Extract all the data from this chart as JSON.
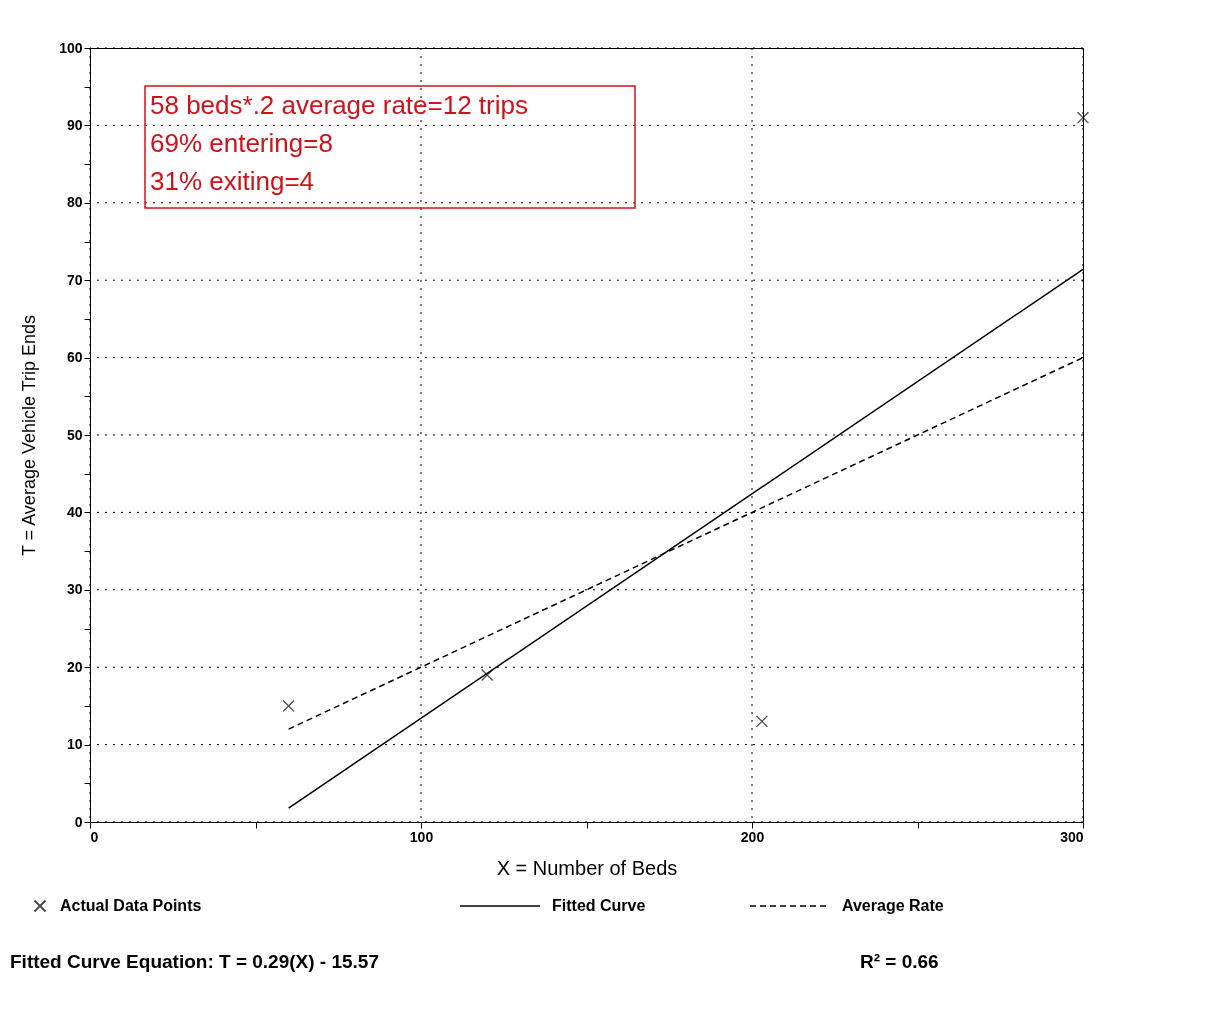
{
  "chart_data": {
    "type": "scatter",
    "xlabel": "X = Number of Beds",
    "ylabel": "T = Average Vehicle Trip Ends",
    "xlim": [
      0,
      300
    ],
    "ylim": [
      0,
      100
    ],
    "xticks": [
      0,
      {
        "value": 50,
        "label": null
      },
      100,
      {
        "value": 150,
        "label": null
      },
      200,
      {
        "value": 250,
        "label": null
      },
      300
    ],
    "yticks": [
      0,
      {
        "value": 5,
        "label": null
      },
      10,
      {
        "value": 15,
        "label": null
      },
      20,
      {
        "value": 25,
        "label": null
      },
      30,
      {
        "value": 35,
        "label": null
      },
      40,
      {
        "value": 45,
        "label": null
      },
      50,
      {
        "value": 55,
        "label": null
      },
      60,
      {
        "value": 65,
        "label": null
      },
      70,
      {
        "value": 75,
        "label": null
      },
      80,
      {
        "value": 85,
        "label": null
      },
      90,
      {
        "value": 95,
        "label": null
      },
      100
    ],
    "grid": true,
    "legend": "bottom",
    "series": [
      {
        "name": "Actual Data Points",
        "marker": "cross",
        "color": "#000000",
        "x": [
          60,
          120,
          203,
          300
        ],
        "values": [
          15,
          19,
          13,
          91
        ]
      },
      {
        "name": "Fitted Curve",
        "type": "line",
        "line_style": "solid",
        "color": "#000000",
        "x": [
          60,
          300
        ],
        "values": [
          1.8,
          71.4
        ]
      },
      {
        "name": "Average Rate",
        "type": "line",
        "line_style": "dashed",
        "color": "#000000",
        "x": [
          60,
          300
        ],
        "values": [
          12,
          60
        ]
      }
    ],
    "annotations": [
      "58 beds*.2 average rate=12 trips\n69% entering=8\n31% exiting=4",
      "Fitted Curve Equation:  T = 0.29(X) - 15.57",
      "R² = 0.66"
    ]
  }
}
